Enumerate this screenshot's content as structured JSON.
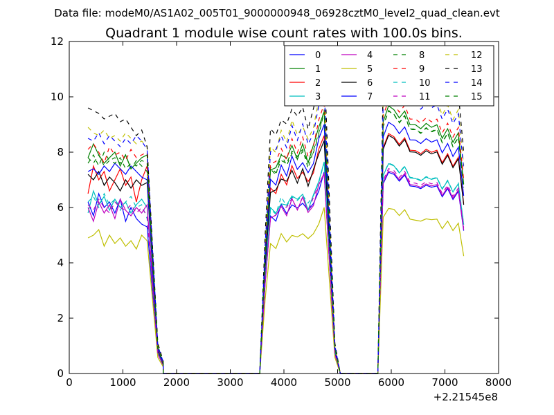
{
  "suptitle": "Data file: modeM0/AS1A02_005T01_9000000948_06928cztM0_level2_quad_clean.evt",
  "chart_data": {
    "type": "line",
    "title": "Quadrant 1 module wise count rates with 100.0s bins.",
    "xlabel": "",
    "ylabel": "",
    "x_offset_label": "+2.21545e8",
    "xlim": [
      0,
      8000
    ],
    "ylim": [
      0,
      12
    ],
    "xticks": [
      "0",
      "1000",
      "2000",
      "3000",
      "4000",
      "5000",
      "6000",
      "7000",
      "8000"
    ],
    "yticks": [
      "0",
      "2",
      "4",
      "6",
      "8",
      "10",
      "12"
    ],
    "legend_position": "top-right",
    "segments": [
      {
        "x_start": 350,
        "x_step": 100,
        "count": 12
      },
      {
        "x_start": 1650,
        "x_step": 100,
        "count": 2
      },
      {
        "x_start": 1750,
        "x_step": 100,
        "count": 19,
        "note": "zero"
      },
      {
        "x_start": 3650,
        "x_step": 100,
        "count": 12
      },
      {
        "x_start": 4950,
        "x_step": 100,
        "count": 2
      },
      {
        "x_start": 5050,
        "x_step": 100,
        "count": 7,
        "note": "zero"
      },
      {
        "x_start": 5750,
        "x_step": 100,
        "count": 2
      },
      {
        "x_start": 5950,
        "x_step": 100,
        "count": 15
      }
    ],
    "series": [
      {
        "name": "0",
        "color": "#0000ff",
        "dash": "solid",
        "values": [
          6.2,
          5.7,
          6.5,
          6.0,
          6.2,
          5.8,
          6.3,
          5.5,
          6.0,
          5.6,
          5.4,
          5.3
        ]
      },
      {
        "name": "1",
        "color": "#008000",
        "dash": "solid",
        "values": [
          7.8,
          8.3,
          7.9,
          7.6,
          7.8,
          8.0,
          7.5,
          7.9,
          7.4,
          7.6,
          7.8,
          7.9
        ]
      },
      {
        "name": "2",
        "color": "#ff0000",
        "dash": "solid",
        "values": [
          6.5,
          7.5,
          7.0,
          7.3,
          6.6,
          7.0,
          7.4,
          6.8,
          7.1,
          6.2,
          7.0,
          7.5
        ]
      },
      {
        "name": "3",
        "color": "#00bfbf",
        "dash": "solid",
        "values": [
          5.8,
          6.6,
          6.1,
          6.4,
          5.9,
          6.3,
          6.0,
          6.2,
          5.8,
          6.1,
          6.3,
          6.0
        ]
      },
      {
        "name": "4",
        "color": "#bf00bf",
        "dash": "solid",
        "values": [
          6.0,
          5.5,
          6.2,
          5.8,
          6.1,
          5.6,
          6.3,
          5.9,
          5.7,
          6.0,
          5.8,
          6.1
        ]
      },
      {
        "name": "5",
        "color": "#bfbf00",
        "dash": "solid",
        "values": [
          4.9,
          5.0,
          5.2,
          4.6,
          5.0,
          4.7,
          4.9,
          4.6,
          4.8,
          4.5,
          5.0,
          4.8
        ]
      },
      {
        "name": "6",
        "color": "#000000",
        "dash": "solid",
        "values": [
          7.2,
          7.0,
          7.3,
          6.8,
          7.1,
          6.9,
          6.6,
          7.0,
          6.7,
          7.0,
          6.8,
          6.9
        ]
      },
      {
        "name": "7",
        "color": "#0000ff",
        "dash": "solid",
        "values": [
          7.3,
          7.4,
          7.2,
          7.5,
          7.3,
          7.6,
          7.4,
          7.2,
          7.5,
          7.3,
          7.1,
          7.0
        ]
      },
      {
        "name": "8",
        "color": "#008000",
        "dash": "dashed",
        "values": [
          7.6,
          7.9,
          7.5,
          8.0,
          7.7,
          7.8,
          7.6,
          7.9,
          7.4,
          7.7,
          7.5,
          7.3
        ]
      },
      {
        "name": "9",
        "color": "#ff0000",
        "dash": "dashed",
        "values": [
          8.1,
          8.3,
          8.0,
          7.6,
          8.2,
          7.9,
          8.0,
          7.7,
          8.1,
          7.8,
          7.9,
          8.0
        ]
      },
      {
        "name": "10",
        "color": "#00bfbf",
        "dash": "dashed",
        "values": [
          6.2,
          6.4,
          6.0,
          6.5,
          6.1,
          6.3,
          5.9,
          6.2,
          6.4,
          6.0,
          6.1,
          5.6
        ]
      },
      {
        "name": "11",
        "color": "#bf00bf",
        "dash": "dashed",
        "values": [
          6.1,
          5.9,
          6.3,
          6.0,
          5.8,
          6.2,
          6.0,
          5.9,
          6.1,
          5.8,
          6.0,
          5.7
        ]
      },
      {
        "name": "12",
        "color": "#bfbf00",
        "dash": "dashed",
        "values": [
          8.9,
          8.7,
          8.6,
          8.8,
          8.5,
          8.6,
          8.4,
          8.7,
          8.5,
          8.3,
          8.4,
          8.2
        ]
      },
      {
        "name": "13",
        "color": "#000000",
        "dash": "dashed",
        "values": [
          9.6,
          9.5,
          9.4,
          9.2,
          9.3,
          9.4,
          9.1,
          9.2,
          8.9,
          8.6,
          8.8,
          8.2
        ]
      },
      {
        "name": "14",
        "color": "#0000ff",
        "dash": "dashed",
        "values": [
          8.5,
          8.4,
          8.7,
          8.3,
          8.6,
          8.4,
          8.2,
          8.5,
          8.3,
          8.6,
          8.4,
          8.1
        ]
      },
      {
        "name": "15",
        "color": "#008000",
        "dash": "dashed",
        "values": [
          7.8,
          7.6,
          7.9,
          7.5,
          7.7,
          7.6,
          7.8,
          7.4,
          7.6,
          7.5,
          7.7,
          7.6
        ]
      }
    ]
  }
}
